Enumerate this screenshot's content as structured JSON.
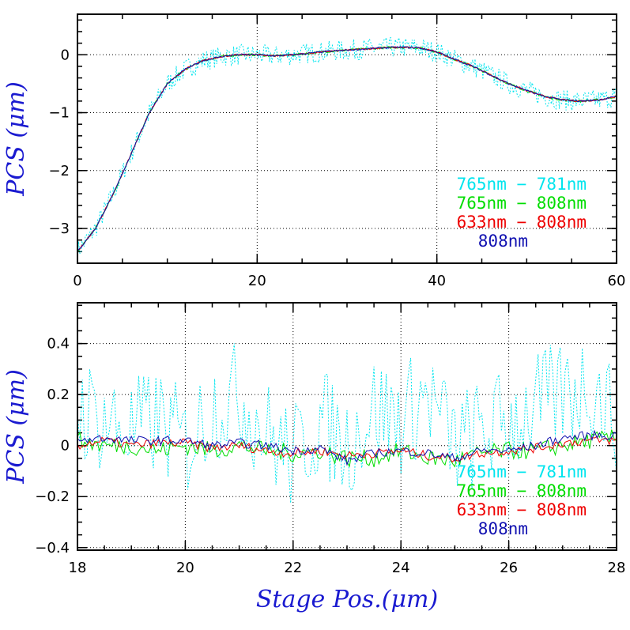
{
  "chart_data": [
    {
      "type": "line",
      "panel": "top",
      "xlabel": "",
      "ylabel": "PCS (μm)",
      "xlim": [
        0,
        60
      ],
      "ylim": [
        -3.6,
        0.7
      ],
      "xticks": [
        0,
        20,
        40,
        60
      ],
      "yticks": [
        -3,
        -2,
        -1,
        0
      ],
      "xtick_labels": [
        "0",
        "20",
        "40",
        "60"
      ],
      "ytick_labels": [
        "−3",
        "−2",
        "−1",
        "0"
      ],
      "grid": true,
      "legend_position": "lower-right",
      "x": [
        0,
        2,
        4,
        6,
        8,
        10,
        12,
        14,
        16,
        18,
        20,
        22,
        24,
        26,
        28,
        30,
        32,
        34,
        36,
        38,
        40,
        42,
        44,
        46,
        48,
        50,
        52,
        54,
        56,
        58,
        60
      ],
      "series": [
        {
          "name": "765nm − 781nm",
          "color": "#00e5ee",
          "style": "dotted",
          "noise": 0.18,
          "values": [
            -3.4,
            -3.0,
            -2.4,
            -1.7,
            -1.0,
            -0.5,
            -0.25,
            -0.1,
            -0.03,
            0.0,
            0.0,
            -0.02,
            0.0,
            0.03,
            0.06,
            0.08,
            0.1,
            0.12,
            0.13,
            0.12,
            0.05,
            -0.08,
            -0.2,
            -0.35,
            -0.5,
            -0.62,
            -0.72,
            -0.78,
            -0.8,
            -0.78,
            -0.72
          ]
        },
        {
          "name": "765nm − 808nm",
          "color": "#00dd00",
          "style": "solid",
          "noise": 0.02,
          "values": [
            -3.4,
            -3.0,
            -2.4,
            -1.7,
            -1.0,
            -0.5,
            -0.25,
            -0.1,
            -0.03,
            0.0,
            0.0,
            -0.02,
            0.0,
            0.03,
            0.06,
            0.08,
            0.1,
            0.12,
            0.13,
            0.12,
            0.05,
            -0.08,
            -0.2,
            -0.35,
            -0.5,
            -0.62,
            -0.72,
            -0.78,
            -0.8,
            -0.78,
            -0.72
          ]
        },
        {
          "name": "633nm − 808nm",
          "color": "#ee0000",
          "style": "solid",
          "noise": 0.015,
          "values": [
            -3.4,
            -3.0,
            -2.4,
            -1.7,
            -1.0,
            -0.5,
            -0.25,
            -0.1,
            -0.03,
            0.0,
            0.0,
            -0.02,
            0.0,
            0.03,
            0.06,
            0.08,
            0.1,
            0.12,
            0.13,
            0.12,
            0.05,
            -0.08,
            -0.2,
            -0.35,
            -0.5,
            -0.62,
            -0.72,
            -0.78,
            -0.8,
            -0.78,
            -0.72
          ]
        },
        {
          "name": "808nm",
          "color": "#1010b0",
          "style": "solid",
          "noise": 0.015,
          "values": [
            -3.4,
            -3.0,
            -2.4,
            -1.7,
            -1.0,
            -0.5,
            -0.25,
            -0.1,
            -0.03,
            0.0,
            0.0,
            -0.02,
            0.0,
            0.03,
            0.06,
            0.08,
            0.1,
            0.12,
            0.13,
            0.12,
            0.05,
            -0.08,
            -0.2,
            -0.35,
            -0.5,
            -0.62,
            -0.72,
            -0.78,
            -0.8,
            -0.78,
            -0.72
          ]
        }
      ]
    },
    {
      "type": "line",
      "panel": "bottom",
      "xlabel": "Stage Pos.(μm)",
      "ylabel": "PCS (μm)",
      "xlim": [
        18,
        28
      ],
      "ylim": [
        -0.41,
        0.56
      ],
      "xticks": [
        18,
        20,
        22,
        24,
        26,
        28
      ],
      "yticks": [
        -0.4,
        -0.2,
        0,
        0.2,
        0.4
      ],
      "xtick_labels": [
        "18",
        "20",
        "22",
        "24",
        "26",
        "28"
      ],
      "ytick_labels": [
        "−0.4",
        "−0.2",
        "0",
        "0.2",
        "0.4"
      ],
      "grid": true,
      "legend_position": "lower-right",
      "x": [
        18,
        18.5,
        19,
        19.5,
        20,
        20.5,
        21,
        21.5,
        22,
        22.5,
        23,
        23.5,
        24,
        24.5,
        25,
        25.5,
        26,
        26.5,
        27,
        27.5,
        28
      ],
      "series": [
        {
          "name": "765nm − 781nm",
          "color": "#00e5ee",
          "style": "dotted",
          "noise": 0.22,
          "values": [
            0.15,
            0.1,
            0.05,
            0.1,
            0.0,
            0.15,
            0.2,
            0.05,
            -0.05,
            0.1,
            0.0,
            0.15,
            0.1,
            0.2,
            0.0,
            0.05,
            0.1,
            0.15,
            0.2,
            0.25,
            0.1
          ]
        },
        {
          "name": "765nm − 808nm",
          "color": "#00dd00",
          "style": "solid",
          "noise": 0.035,
          "values": [
            0.02,
            0.0,
            0.0,
            -0.02,
            0.0,
            -0.02,
            0.0,
            -0.02,
            -0.03,
            -0.02,
            -0.05,
            -0.05,
            -0.02,
            -0.05,
            -0.06,
            -0.03,
            -0.02,
            -0.02,
            0.0,
            0.02,
            0.03
          ]
        },
        {
          "name": "633nm − 808nm",
          "color": "#ee0000",
          "style": "solid",
          "noise": 0.018,
          "values": [
            0.0,
            0.02,
            0.0,
            0.01,
            0.01,
            -0.01,
            0.0,
            -0.02,
            -0.03,
            -0.02,
            -0.04,
            -0.03,
            -0.02,
            -0.04,
            -0.05,
            -0.03,
            -0.02,
            -0.01,
            0.01,
            0.02,
            0.02
          ]
        },
        {
          "name": "808nm",
          "color": "#1010b0",
          "style": "solid",
          "noise": 0.018,
          "values": [
            0.02,
            0.03,
            0.02,
            0.02,
            0.02,
            0.0,
            0.01,
            0.0,
            -0.02,
            -0.01,
            -0.06,
            -0.03,
            -0.02,
            -0.03,
            -0.05,
            -0.02,
            -0.02,
            0.0,
            0.03,
            0.04,
            0.04
          ]
        }
      ]
    }
  ]
}
